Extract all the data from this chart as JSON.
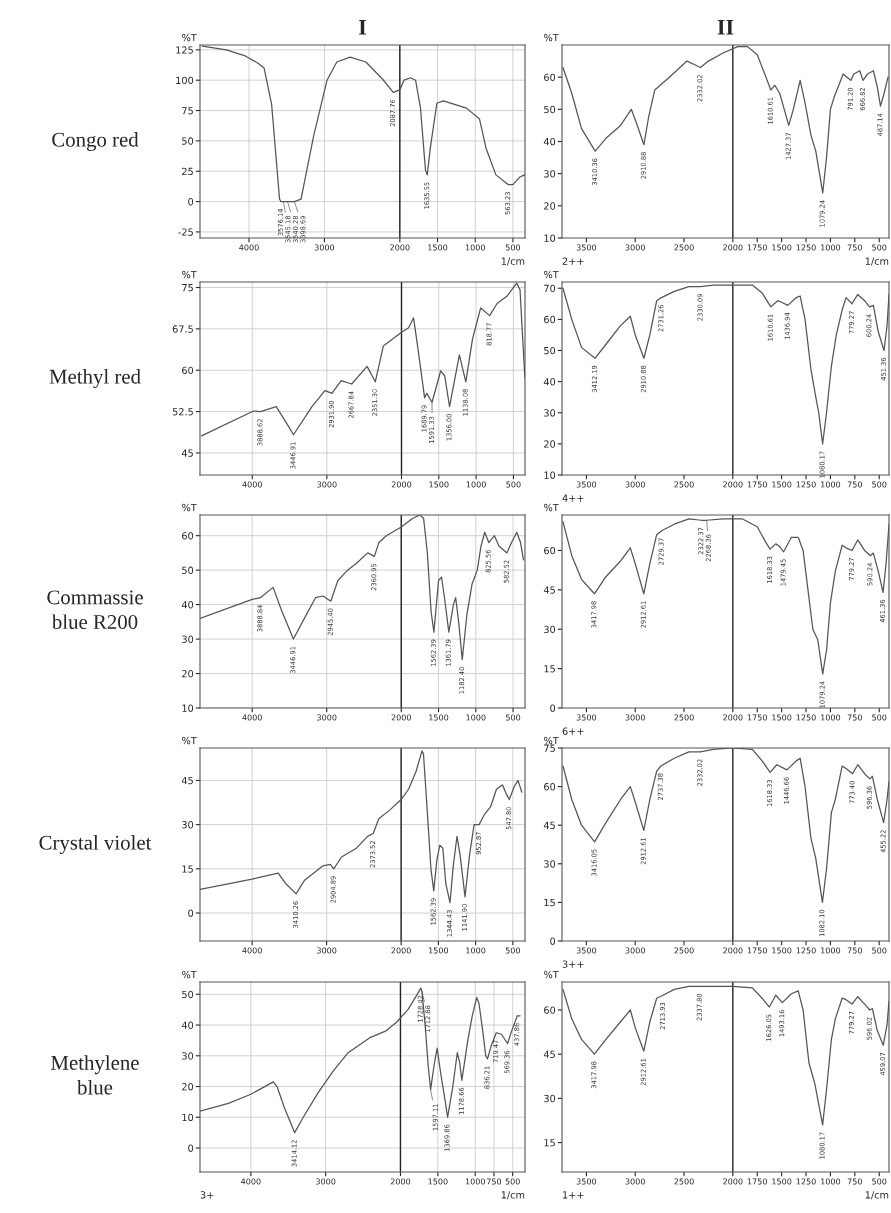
{
  "chart_data": [
    {
      "type": "line",
      "title": "I",
      "subtitle": "Congo red",
      "ylabel": "%T",
      "xlabel": "1/cm",
      "grid": true,
      "xlim": [
        4650,
        340
      ],
      "ylim": [
        -30,
        129
      ],
      "xticks": [
        4000,
        3000,
        2000,
        1500,
        1000,
        500
      ],
      "yticks": [
        125,
        100,
        75,
        50,
        25,
        0,
        -25
      ],
      "ref_lines": [
        {
          "axis": "x",
          "value": 2000,
          "color": "#222222"
        }
      ],
      "x": [
        4620,
        4300,
        4050,
        3880,
        3800,
        3700,
        3595,
        3576,
        3545,
        3540,
        3450,
        3398,
        3310,
        3140,
        2965,
        2836,
        2660,
        2450,
        2230,
        2088,
        2000,
        1945,
        1858,
        1791,
        1726,
        1660,
        1636,
        1596,
        1509,
        1422,
        1117,
        943,
        857,
        726,
        563,
        500,
        413,
        348
      ],
      "series": [
        {
          "color": "#555555",
          "values": [
            128,
            125,
            120,
            114,
            110,
            80,
            2,
            0,
            0,
            0,
            0,
            0,
            2,
            55,
            100,
            115,
            119,
            115,
            101,
            90,
            92,
            100,
            102,
            100,
            77,
            26,
            22,
            44,
            81,
            83,
            77,
            68,
            44,
            22,
            14,
            14,
            20,
            22
          ]
        }
      ],
      "annotations": [
        {
          "text": "3576.14",
          "x": 3576,
          "y": 0
        },
        {
          "text": "3545.18",
          "x": 3545,
          "y": 0
        },
        {
          "text": "3540.28",
          "x": 3490,
          "y": 0
        },
        {
          "text": "3398.69",
          "x": 3398,
          "y": 0
        },
        {
          "text": "2087.76",
          "x": 2088,
          "y": 90
        },
        {
          "text": "1635.55",
          "x": 1636,
          "y": 22
        },
        {
          "text": "563.23",
          "x": 563,
          "y": 14
        }
      ]
    },
    {
      "type": "line",
      "title": "II",
      "ylabel": "%T",
      "xlabel": "1/cm",
      "grid": false,
      "xlim": [
        3750,
        400
      ],
      "ylim": [
        10,
        70
      ],
      "xticks": [
        3500,
        3000,
        2500,
        2000,
        1750,
        1500,
        1250,
        1000,
        750,
        500
      ],
      "yticks": [
        60,
        50,
        40,
        30,
        20,
        10
      ],
      "ref_lines": [
        {
          "axis": "x",
          "value": 2000,
          "color": "#222222"
        }
      ],
      "x": [
        3740,
        3650,
        3550,
        3410,
        3300,
        3150,
        3040,
        2990,
        2911,
        2860,
        2800,
        2650,
        2470,
        2400,
        2332,
        2250,
        2100,
        1950,
        1850,
        1750,
        1660,
        1611,
        1570,
        1520,
        1427,
        1380,
        1310,
        1260,
        1200,
        1150,
        1079,
        1040,
        1000,
        960,
        920,
        870,
        830,
        791,
        760,
        700,
        666,
        620,
        560,
        520,
        487,
        450,
        410
      ],
      "series": [
        {
          "color": "#555555",
          "values": [
            63,
            55,
            44,
            37,
            41,
            45,
            50,
            46,
            39,
            48,
            56,
            60,
            65,
            64,
            63,
            65,
            67.5,
            69.5,
            69.5,
            67,
            60,
            56,
            57.5,
            55,
            45,
            50,
            59,
            52,
            42,
            37,
            24,
            35,
            50,
            54,
            57,
            61,
            60,
            59,
            61,
            62,
            59,
            61,
            62,
            57,
            51,
            55,
            60
          ]
        }
      ],
      "annotations": [
        "2++",
        {
          "text": "3410.36",
          "x": 3410,
          "y": 37
        },
        {
          "text": "2910.88",
          "x": 2911,
          "y": 39
        },
        {
          "text": "2332.02",
          "x": 2332,
          "y": 63
        },
        {
          "text": "1610.61",
          "x": 1611,
          "y": 56
        },
        {
          "text": "1427.37",
          "x": 1427,
          "y": 45
        },
        {
          "text": "1079.24",
          "x": 1079,
          "y": 24
        },
        {
          "text": "791.20",
          "x": 791,
          "y": 59
        },
        {
          "text": "666.82",
          "x": 666,
          "y": 59
        },
        {
          "text": "487.14",
          "x": 487,
          "y": 51
        }
      ]
    },
    {
      "type": "line",
      "subtitle": "Methyl red",
      "ylabel": "%T",
      "grid": true,
      "xlim": [
        4700,
        345
      ],
      "ylim": [
        41,
        76
      ],
      "xticks": [
        4000,
        3000,
        2000,
        1500,
        1000,
        500
      ],
      "yticks": [
        75,
        67.5,
        60,
        52.5,
        45
      ],
      "ref_lines": [
        {
          "axis": "x",
          "value": 2000,
          "color": "#222222"
        }
      ],
      "x": [
        4680,
        3983,
        3889,
        3678,
        3500,
        3447,
        3200,
        3026,
        2932,
        2808,
        2668,
        2461,
        2351,
        2243,
        2000,
        1904,
        1838,
        1772,
        1690,
        1662,
        1591,
        1474,
        1421,
        1356,
        1224,
        1138,
        1048,
        939,
        819,
        719,
        588,
        456,
        412,
        347
      ],
      "series": [
        {
          "color": "#555555",
          "values": [
            48.1,
            52.6,
            52.5,
            53.4,
            49.5,
            48.3,
            53.4,
            56.3,
            55.8,
            58.1,
            57.5,
            60.7,
            57.9,
            64.4,
            66.9,
            67.7,
            69.5,
            63.2,
            55,
            55.8,
            54.2,
            59.9,
            59,
            53.4,
            62.8,
            57.9,
            65.7,
            71.3,
            69.9,
            72.1,
            73.4,
            75.8,
            74.6,
            58.7
          ]
        }
      ],
      "annotations": [
        {
          "text": "3888.62",
          "x": 3889,
          "y": 52.5
        },
        {
          "text": "3446.91",
          "x": 3447,
          "y": 48.3
        },
        {
          "text": "2931.90",
          "x": 2932,
          "y": 55.8
        },
        {
          "text": "2667.84",
          "x": 2668,
          "y": 57.5
        },
        {
          "text": "2351.30",
          "x": 2351,
          "y": 57.9
        },
        {
          "text": "1689.79",
          "x": 1690,
          "y": 55
        },
        {
          "text": "1591.33",
          "x": 1591,
          "y": 54.2
        },
        {
          "text": "1356.00",
          "x": 1356,
          "y": 53.4
        },
        {
          "text": "1138.08",
          "x": 1138,
          "y": 57.9
        },
        {
          "text": "818.77",
          "x": 819,
          "y": 69.9
        }
      ]
    },
    {
      "type": "line",
      "ylabel": "%T",
      "grid": false,
      "xlim": [
        3750,
        400
      ],
      "ylim": [
        10,
        72
      ],
      "xticks": [
        3500,
        3000,
        2500,
        2000,
        1750,
        1500,
        1250,
        1000,
        750,
        500
      ],
      "yticks": [
        70,
        60,
        50,
        40,
        30,
        20,
        10
      ],
      "ref_lines": [
        {
          "axis": "x",
          "value": 2000,
          "color": "#222222"
        }
      ],
      "x": [
        3740,
        3650,
        3550,
        3412,
        3300,
        3150,
        3050,
        3000,
        2911,
        2850,
        2780,
        2731,
        2600,
        2450,
        2330,
        2200,
        2000,
        1800,
        1700,
        1611,
        1540,
        1500,
        1437,
        1350,
        1310,
        1260,
        1200,
        1150,
        1120,
        1080,
        1040,
        990,
        940,
        880,
        840,
        779,
        720,
        650,
        600,
        560,
        510,
        451,
        420,
        400
      ],
      "series": [
        {
          "color": "#555555",
          "values": [
            70,
            60,
            51,
            47.5,
            52,
            58,
            61,
            55,
            47.5,
            55,
            66,
            67,
            69,
            70.5,
            70.5,
            71,
            71,
            71,
            68.5,
            64,
            66,
            65.5,
            64.5,
            67,
            67.5,
            60,
            44,
            35,
            30,
            20,
            30,
            45,
            55,
            63,
            67,
            65,
            68,
            66,
            64,
            64.5,
            56,
            50,
            58,
            68
          ]
        }
      ],
      "annotations": [
        "4++",
        {
          "text": "3412.19",
          "x": 3412,
          "y": 47.5
        },
        {
          "text": "2910.88",
          "x": 2911,
          "y": 47.5
        },
        {
          "text": "2731.26",
          "x": 2731,
          "y": 67
        },
        {
          "text": "2330.09",
          "x": 2330,
          "y": 70.5
        },
        {
          "text": "1610.61",
          "x": 1611,
          "y": 64
        },
        {
          "text": "1436.94",
          "x": 1437,
          "y": 64.5
        },
        {
          "text": "1080.17",
          "x": 1080,
          "y": 20
        },
        {
          "text": "779.27",
          "x": 779,
          "y": 65
        },
        {
          "text": "600.24",
          "x": 600,
          "y": 64
        },
        {
          "text": "451.36",
          "x": 451,
          "y": 50
        }
      ]
    },
    {
      "type": "line",
      "subtitle": "Commassie\nblue R200",
      "ylabel": "%T",
      "grid": true,
      "xlim": [
        4700,
        340
      ],
      "ylim": [
        10,
        66
      ],
      "xticks": [
        4000,
        3000,
        2000,
        1500,
        1000,
        500
      ],
      "yticks": [
        60,
        50,
        40,
        30,
        20,
        10
      ],
      "ref_lines": [
        {
          "axis": "x",
          "value": 2000,
          "color": "#222222"
        }
      ],
      "x": [
        4700,
        4000,
        3889,
        3720,
        3600,
        3447,
        3300,
        3150,
        3050,
        2945,
        2850,
        2720,
        2600,
        2450,
        2361,
        2300,
        2200,
        2000,
        1850,
        1750,
        1700,
        1650,
        1600,
        1562,
        1500,
        1460,
        1420,
        1362,
        1300,
        1270,
        1230,
        1182,
        1120,
        1050,
        980,
        930,
        880,
        826,
        750,
        690,
        583,
        520,
        450,
        400,
        360
      ],
      "series": [
        {
          "color": "#555555",
          "values": [
            36,
            41.5,
            42,
            45,
            38,
            30,
            36,
            42,
            42.5,
            41,
            47,
            50,
            52,
            55,
            54,
            58,
            60,
            62.5,
            65,
            66,
            65,
            55,
            38,
            32,
            47,
            48,
            42,
            32,
            40,
            42,
            35,
            24,
            37,
            46,
            50,
            57,
            61,
            58,
            60,
            57,
            55,
            58,
            61,
            58,
            53
          ]
        }
      ],
      "annotations": [
        {
          "text": "3888.84",
          "x": 3889,
          "y": 42
        },
        {
          "text": "3446.91",
          "x": 3447,
          "y": 30
        },
        {
          "text": "2945.40",
          "x": 2945,
          "y": 41
        },
        {
          "text": "2360.95",
          "x": 2361,
          "y": 54
        },
        {
          "text": "1562.39",
          "x": 1562,
          "y": 32
        },
        {
          "text": "1361.79",
          "x": 1362,
          "y": 32
        },
        {
          "text": "1182.40",
          "x": 1182,
          "y": 24
        },
        {
          "text": "825.56",
          "x": 826,
          "y": 58
        },
        {
          "text": "582.52",
          "x": 583,
          "y": 55
        }
      ]
    },
    {
      "type": "line",
      "ylabel": "%T",
      "grid": false,
      "xlim": [
        3750,
        400
      ],
      "ylim": [
        0,
        73.5
      ],
      "xticks": [
        3500,
        3000,
        2500,
        2000,
        1750,
        1500,
        1250,
        1000,
        750,
        500
      ],
      "yticks": [
        60,
        45,
        30,
        15,
        0
      ],
      "ref_lines": [
        {
          "axis": "x",
          "value": 2000,
          "color": "#222222"
        }
      ],
      "x": [
        3740,
        3650,
        3550,
        3418,
        3300,
        3150,
        3050,
        3000,
        2912,
        2850,
        2780,
        2729,
        2600,
        2450,
        2322,
        2268,
        2100,
        1900,
        1750,
        1660,
        1618,
        1560,
        1520,
        1479,
        1400,
        1330,
        1280,
        1230,
        1180,
        1130,
        1079,
        1040,
        1000,
        950,
        880,
        840,
        779,
        720,
        650,
        590,
        560,
        510,
        461,
        430,
        400
      ],
      "series": [
        {
          "color": "#555555",
          "values": [
            71,
            58,
            49,
            43.5,
            50,
            56,
            61,
            55,
            43.5,
            55,
            66,
            67.5,
            70,
            72,
            71.5,
            71.5,
            72,
            72,
            69,
            63,
            60.5,
            62.5,
            61.5,
            59.5,
            65,
            65,
            60,
            45,
            30,
            26,
            13,
            22,
            40,
            52,
            62,
            61,
            60,
            64,
            60,
            58,
            59,
            52,
            44,
            55,
            70
          ]
        }
      ],
      "annotations": [
        "6++",
        {
          "text": "3417.98",
          "x": 3418,
          "y": 43.5
        },
        {
          "text": "2912.61",
          "x": 2912,
          "y": 43.5
        },
        {
          "text": "2729.37",
          "x": 2729,
          "y": 67.5
        },
        {
          "text": "2322.37",
          "x": 2322,
          "y": 71.5
        },
        {
          "text": "2268.36",
          "x": 2268,
          "y": 71.5
        },
        {
          "text": "1618.33",
          "x": 1618,
          "y": 60.5
        },
        {
          "text": "1479.45",
          "x": 1479,
          "y": 59.5
        },
        {
          "text": "1079.24",
          "x": 1079,
          "y": 13
        },
        {
          "text": "779.27",
          "x": 779,
          "y": 60
        },
        {
          "text": "590.24",
          "x": 590,
          "y": 58
        },
        {
          "text": "461.36",
          "x": 461,
          "y": 44
        }
      ]
    },
    {
      "type": "line",
      "subtitle": "Crystal violet",
      "ylabel": "%T",
      "grid": true,
      "xlim": [
        4700,
        337
      ],
      "ylim": [
        -9.5,
        56
      ],
      "xticks": [
        4000,
        3000,
        2000,
        1500,
        1000,
        500
      ],
      "yticks": [
        45,
        30,
        15,
        0
      ],
      "ref_lines": [
        {
          "axis": "x",
          "value": 2000,
          "color": "#222222"
        }
      ],
      "x": [
        4700,
        4000,
        3650,
        3550,
        3410,
        3300,
        3050,
        2950,
        2905,
        2800,
        2600,
        2450,
        2374,
        2300,
        2150,
        2000,
        1900,
        1800,
        1720,
        1700,
        1650,
        1600,
        1562,
        1520,
        1480,
        1440,
        1400,
        1344,
        1300,
        1250,
        1210,
        1142,
        1080,
        1020,
        953,
        880,
        800,
        720,
        640,
        580,
        548,
        480,
        430,
        380
      ],
      "series": [
        {
          "color": "#555555",
          "values": [
            8,
            11.5,
            13.5,
            10,
            6.5,
            11,
            16,
            16.5,
            15,
            19,
            22,
            26,
            27,
            32,
            35,
            38.5,
            42,
            48,
            55,
            54,
            35,
            15,
            7.5,
            18,
            23,
            22,
            10,
            3.5,
            16,
            26,
            20,
            5.5,
            20,
            30,
            30,
            33.5,
            36,
            42,
            43.5,
            40,
            38.5,
            43,
            45,
            41
          ]
        }
      ],
      "annotations": [
        {
          "text": "3410.26",
          "x": 3410,
          "y": 6.5
        },
        {
          "text": "2904.89",
          "x": 2905,
          "y": 15
        },
        {
          "text": "2373.52",
          "x": 2374,
          "y": 27
        },
        {
          "text": "1562.39",
          "x": 1562,
          "y": 7.5
        },
        {
          "text": "1344.43",
          "x": 1344,
          "y": 3.5
        },
        {
          "text": "1141.90",
          "x": 1142,
          "y": 5.5
        },
        {
          "text": "952.87",
          "x": 953,
          "y": 30
        },
        {
          "text": "547.80",
          "x": 548,
          "y": 38.5
        }
      ]
    },
    {
      "type": "line",
      "ylabel": "%T",
      "grid": false,
      "xlim": [
        3750,
        400
      ],
      "ylim": [
        0,
        75
      ],
      "xticks": [
        3500,
        3000,
        2500,
        2000,
        1750,
        1500,
        1250,
        1000,
        750,
        500
      ],
      "yticks": [
        75,
        60,
        45,
        30,
        15,
        0
      ],
      "ref_lines": [
        {
          "axis": "x",
          "value": 2000,
          "color": "#222222"
        }
      ],
      "x": [
        3740,
        3650,
        3550,
        3416,
        3300,
        3150,
        3050,
        3000,
        2912,
        2850,
        2780,
        2737,
        2600,
        2450,
        2332,
        2200,
        2000,
        1800,
        1700,
        1618,
        1550,
        1446,
        1350,
        1310,
        1260,
        1200,
        1150,
        1082,
        1040,
        990,
        950,
        880,
        840,
        773,
        720,
        650,
        596,
        570,
        520,
        455,
        420,
        400
      ],
      "series": [
        {
          "color": "#555555",
          "values": [
            68,
            55,
            45,
            38.5,
            46,
            55,
            60,
            54,
            43,
            55,
            66,
            68,
            71,
            73.5,
            73.5,
            74.5,
            75,
            74.5,
            70,
            65.5,
            68.5,
            66.5,
            70,
            71,
            60,
            40,
            32,
            15,
            28,
            50,
            55,
            68,
            67,
            65,
            68.5,
            65,
            63,
            64,
            55,
            46,
            55,
            62
          ]
        }
      ],
      "annotations": [
        "3++",
        {
          "text": "3416.05",
          "x": 3416,
          "y": 38.5
        },
        {
          "text": "2912.61",
          "x": 2912,
          "y": 43
        },
        {
          "text": "2737.38",
          "x": 2737,
          "y": 68
        },
        {
          "text": "2332.02",
          "x": 2332,
          "y": 73.5
        },
        {
          "text": "1618.33",
          "x": 1618,
          "y": 65.5
        },
        {
          "text": "1446.66",
          "x": 1446,
          "y": 66.5
        },
        {
          "text": "1082.10",
          "x": 1082,
          "y": 15
        },
        {
          "text": "773.40",
          "x": 773,
          "y": 65
        },
        {
          "text": "596.36",
          "x": 596,
          "y": 63
        },
        {
          "text": "455.22",
          "x": 455,
          "y": 46
        }
      ]
    },
    {
      "type": "line",
      "subtitle": "Methylene\nblue",
      "ylabel": "%T",
      "xlabel": "1/cm",
      "grid": true,
      "xlim": [
        4680,
        335
      ],
      "ylim": [
        -7.8,
        54
      ],
      "xticks": [
        4000,
        3000,
        2000,
        1500,
        1000,
        750,
        500
      ],
      "yticks": [
        50,
        40,
        30,
        20,
        10,
        0
      ],
      "ref_lines": [
        {
          "axis": "x",
          "value": 2000,
          "color": "#222222"
        }
      ],
      "x": [
        4680,
        4300,
        4000,
        3700,
        3650,
        3550,
        3414,
        3300,
        3100,
        2900,
        2700,
        2400,
        2200,
        2050,
        1900,
        1800,
        1728,
        1713,
        1670,
        1630,
        1597,
        1550,
        1510,
        1460,
        1400,
        1370,
        1300,
        1240,
        1210,
        1179,
        1100,
        1040,
        980,
        950,
        900,
        860,
        836,
        790,
        719,
        650,
        569,
        500,
        438,
        400
      ],
      "series": [
        {
          "color": "#555555",
          "values": [
            12,
            14.5,
            17.5,
            21.5,
            20,
            13,
            5,
            10,
            18,
            25,
            31,
            36,
            38,
            41,
            45,
            49,
            52,
            51,
            40,
            27,
            19,
            27,
            32.5,
            24,
            15,
            10,
            20,
            31,
            28,
            22,
            35,
            43,
            49,
            47,
            38,
            30,
            29,
            33,
            37.5,
            37,
            34,
            39,
            43,
            43
          ]
        }
      ],
      "annotations": [
        "3+",
        {
          "text": "3414.12",
          "x": 3414,
          "y": 5
        },
        {
          "text": "1728.42",
          "x": 1728,
          "y": 52
        },
        {
          "text": "1712.88",
          "x": 1713,
          "y": 51
        },
        {
          "text": "1597.11",
          "x": 1597,
          "y": 19
        },
        {
          "text": "1369.86",
          "x": 1370,
          "y": 10
        },
        {
          "text": "1178.66",
          "x": 1179,
          "y": 22
        },
        {
          "text": "836.21",
          "x": 836,
          "y": 29
        },
        {
          "text": "719.47",
          "x": 719,
          "y": 37.5
        },
        {
          "text": "569.36",
          "x": 569,
          "y": 34
        },
        {
          "text": "437.86",
          "x": 438,
          "y": 43
        }
      ]
    },
    {
      "type": "line",
      "ylabel": "%T",
      "xlabel": "1/cm",
      "grid": false,
      "xlim": [
        3750,
        400
      ],
      "ylim": [
        5,
        69.5
      ],
      "xticks": [
        3500,
        3000,
        2500,
        2000,
        1750,
        1500,
        1250,
        1000,
        750,
        500
      ],
      "yticks": [
        60,
        45,
        30,
        15
      ],
      "ref_lines": [
        {
          "axis": "x",
          "value": 2000,
          "color": "#222222"
        }
      ],
      "x": [
        3740,
        3650,
        3550,
        3418,
        3300,
        3150,
        3050,
        3000,
        2912,
        2850,
        2780,
        2714,
        2600,
        2450,
        2338,
        2000,
        1800,
        1700,
        1626,
        1560,
        1493,
        1400,
        1330,
        1280,
        1220,
        1160,
        1080,
        1040,
        990,
        950,
        880,
        840,
        779,
        720,
        650,
        596,
        570,
        520,
        459,
        420,
        400
      ],
      "series": [
        {
          "color": "#555555",
          "values": [
            67,
            57,
            50,
            45,
            50,
            56,
            60,
            54,
            46,
            56,
            64,
            65,
            67,
            68,
            68,
            68,
            67.5,
            64,
            61,
            65,
            62.5,
            65.5,
            66.5,
            60,
            42,
            35,
            21,
            33,
            50,
            57,
            64,
            63.5,
            62,
            64.5,
            62,
            60,
            60.5,
            53,
            48,
            55,
            63
          ]
        }
      ],
      "annotations": [
        "1++",
        {
          "text": "3417.98",
          "x": 3418,
          "y": 45
        },
        {
          "text": "2912.61",
          "x": 2912,
          "y": 46
        },
        {
          "text": "2713.93",
          "x": 2714,
          "y": 65
        },
        {
          "text": "2337.80",
          "x": 2338,
          "y": 68
        },
        {
          "text": "1626.05",
          "x": 1626,
          "y": 61
        },
        {
          "text": "1493.16",
          "x": 1493,
          "y": 62.5
        },
        {
          "text": "1080.17",
          "x": 1080,
          "y": 21
        },
        {
          "text": "779.27",
          "x": 779,
          "y": 62
        },
        {
          "text": "596.02",
          "x": 596,
          "y": 60
        },
        {
          "text": "459.07",
          "x": 459,
          "y": 48
        }
      ]
    }
  ]
}
